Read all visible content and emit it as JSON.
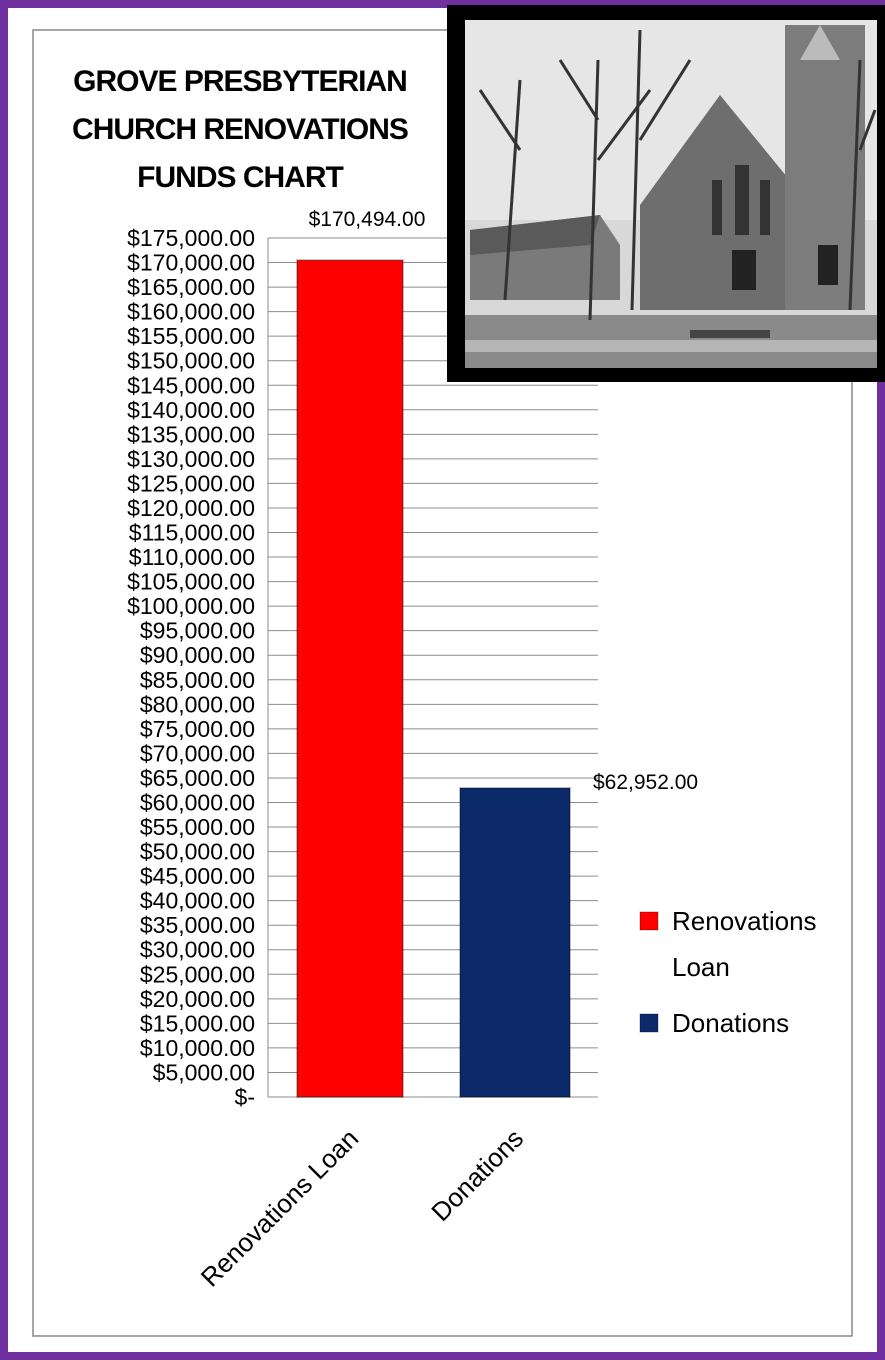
{
  "chart_data": {
    "type": "bar",
    "title": "GROVE PRESBYTERIAN CHURCH RENOVATIONS FUNDS CHART",
    "categories": [
      "Renovations Loan",
      "Donations"
    ],
    "values": [
      170494,
      62952
    ],
    "value_labels": [
      "$170,494.00",
      "$62,952.00"
    ],
    "colors": [
      "#ff0000",
      "#0c2a6a"
    ],
    "ylim": [
      0,
      175000
    ],
    "yticks": [
      {
        "value": 0,
        "label": "$-"
      },
      {
        "value": 5000,
        "label": "$5,000.00"
      },
      {
        "value": 10000,
        "label": "$10,000.00"
      },
      {
        "value": 15000,
        "label": "$15,000.00"
      },
      {
        "value": 20000,
        "label": "$20,000.00"
      },
      {
        "value": 25000,
        "label": "$25,000.00"
      },
      {
        "value": 30000,
        "label": "$30,000.00"
      },
      {
        "value": 35000,
        "label": "$35,000.00"
      },
      {
        "value": 40000,
        "label": "$40,000.00"
      },
      {
        "value": 45000,
        "label": "$45,000.00"
      },
      {
        "value": 50000,
        "label": "$50,000.00"
      },
      {
        "value": 55000,
        "label": "$55,000.00"
      },
      {
        "value": 60000,
        "label": "$60,000.00"
      },
      {
        "value": 65000,
        "label": "$65,000.00"
      },
      {
        "value": 70000,
        "label": "$70,000.00"
      },
      {
        "value": 75000,
        "label": "$75,000.00"
      },
      {
        "value": 80000,
        "label": "$80,000.00"
      },
      {
        "value": 85000,
        "label": "$85,000.00"
      },
      {
        "value": 90000,
        "label": "$90,000.00"
      },
      {
        "value": 95000,
        "label": "$95,000.00"
      },
      {
        "value": 100000,
        "label": "$100,000.00"
      },
      {
        "value": 105000,
        "label": "$105,000.00"
      },
      {
        "value": 110000,
        "label": "$110,000.00"
      },
      {
        "value": 115000,
        "label": "$115,000.00"
      },
      {
        "value": 120000,
        "label": "$120,000.00"
      },
      {
        "value": 125000,
        "label": "$125,000.00"
      },
      {
        "value": 130000,
        "label": "$130,000.00"
      },
      {
        "value": 135000,
        "label": "$135,000.00"
      },
      {
        "value": 140000,
        "label": "$140,000.00"
      },
      {
        "value": 145000,
        "label": "$145,000.00"
      },
      {
        "value": 150000,
        "label": "$150,000.00"
      },
      {
        "value": 155000,
        "label": "$155,000.00"
      },
      {
        "value": 160000,
        "label": "$160,000.00"
      },
      {
        "value": 165000,
        "label": "$165,000.00"
      },
      {
        "value": 170000,
        "label": "$170,000.00"
      },
      {
        "value": 175000,
        "label": "$175,000.00"
      }
    ],
    "grid": true,
    "legend": "right"
  }
}
